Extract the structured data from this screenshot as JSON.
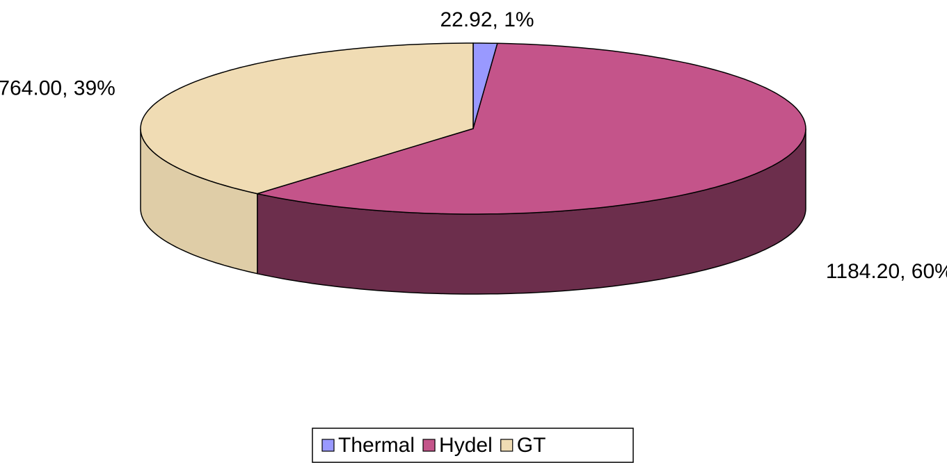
{
  "chart_data": {
    "type": "pie",
    "categories": [
      "Thermal",
      "Hydel",
      "GT"
    ],
    "values": [
      22.92,
      1184.2,
      764.0
    ],
    "value_labels": [
      "22.92, 1%",
      "1184.20, 60%",
      "764.00, 39%"
    ],
    "colors": [
      "#9999ff",
      "#c4548a",
      "#f0dcb4"
    ],
    "legend": "bottom"
  }
}
